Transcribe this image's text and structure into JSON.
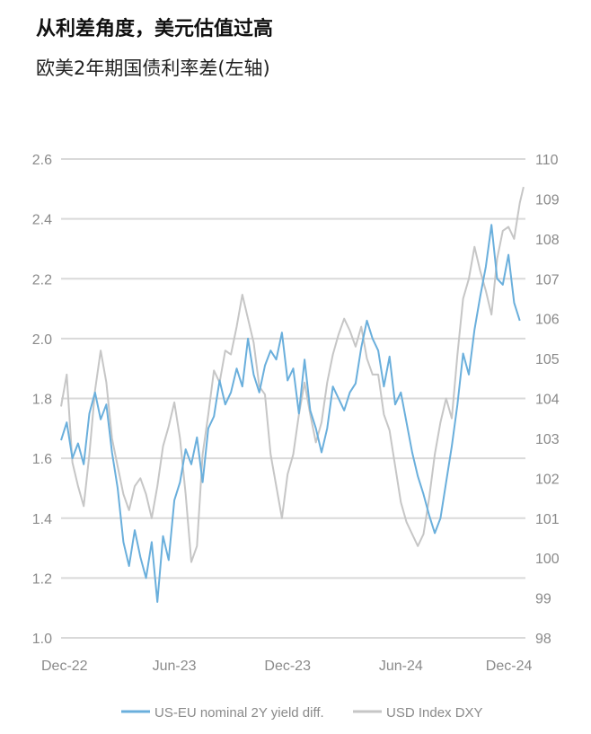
{
  "header": {
    "title": "从利差角度，美元估值过高",
    "subtitle": "欧美2年期国债利率差(左轴)"
  },
  "chart_data": {
    "type": "line",
    "x_ticks": [
      "Dec-22",
      "Jun-23",
      "Dec-23",
      "Jun-24",
      "Dec-24"
    ],
    "x_tick_months": [
      0,
      6,
      12,
      18,
      24
    ],
    "xlim_months": [
      0,
      24.6
    ],
    "y_left": {
      "ticks": [
        "1.0",
        "1.2",
        "1.4",
        "1.6",
        "1.8",
        "2.0",
        "2.2",
        "2.4",
        "2.6"
      ],
      "lim": [
        1.0,
        2.6
      ]
    },
    "y_right": {
      "ticks": [
        "98",
        "99",
        "100",
        "101",
        "102",
        "103",
        "104",
        "105",
        "106",
        "107",
        "108",
        "109",
        "110"
      ],
      "lim": [
        98,
        110
      ]
    },
    "grid": true,
    "legend_position": "bottom",
    "colors": {
      "spread": "#6aafdc",
      "dxy": "#c6c6c6",
      "grid": "#d9d9d9",
      "ticks": "#8a8a8a"
    },
    "series": [
      {
        "name": "US-EU nominal 2Y yield diff.",
        "axis": "left",
        "x_months": [
          0,
          0.3,
          0.6,
          0.9,
          1.2,
          1.5,
          1.8,
          2.1,
          2.4,
          2.7,
          3.0,
          3.3,
          3.6,
          3.9,
          4.2,
          4.5,
          4.8,
          5.1,
          5.4,
          5.7,
          6.0,
          6.3,
          6.6,
          6.9,
          7.2,
          7.5,
          7.8,
          8.1,
          8.4,
          8.7,
          9.0,
          9.3,
          9.6,
          9.9,
          10.2,
          10.5,
          10.8,
          11.1,
          11.4,
          11.7,
          12.0,
          12.3,
          12.6,
          12.9,
          13.2,
          13.5,
          13.8,
          14.1,
          14.4,
          14.7,
          15.0,
          15.3,
          15.6,
          15.9,
          16.2,
          16.5,
          16.8,
          17.1,
          17.4,
          17.7,
          18.0,
          18.3,
          18.6,
          18.9,
          19.2,
          19.5,
          19.8,
          20.1,
          20.4,
          20.7,
          21.0,
          21.3,
          21.6,
          21.9,
          22.2,
          22.5,
          22.8,
          23.1,
          23.4,
          23.7,
          24.0,
          24.3
        ],
        "values": [
          1.66,
          1.72,
          1.6,
          1.65,
          1.58,
          1.75,
          1.82,
          1.73,
          1.78,
          1.62,
          1.5,
          1.32,
          1.24,
          1.36,
          1.27,
          1.2,
          1.32,
          1.12,
          1.34,
          1.26,
          1.46,
          1.52,
          1.63,
          1.58,
          1.67,
          1.52,
          1.7,
          1.74,
          1.86,
          1.78,
          1.82,
          1.9,
          1.84,
          2.0,
          1.88,
          1.82,
          1.91,
          1.96,
          1.93,
          2.02,
          1.86,
          1.9,
          1.75,
          1.93,
          1.76,
          1.7,
          1.62,
          1.7,
          1.84,
          1.8,
          1.76,
          1.82,
          1.85,
          1.97,
          2.06,
          2.0,
          1.96,
          1.84,
          1.94,
          1.78,
          1.82,
          1.72,
          1.62,
          1.54,
          1.48,
          1.41,
          1.35,
          1.4,
          1.52,
          1.64,
          1.78,
          1.95,
          1.88,
          2.03,
          2.14,
          2.24,
          2.38,
          2.2,
          2.18,
          2.28,
          2.12,
          2.06
        ]
      },
      {
        "name": "USD Index DXY",
        "axis": "right",
        "x_months": [
          0,
          0.3,
          0.6,
          0.9,
          1.2,
          1.5,
          1.8,
          2.1,
          2.4,
          2.7,
          3.0,
          3.3,
          3.6,
          3.9,
          4.2,
          4.5,
          4.8,
          5.1,
          5.4,
          5.7,
          6.0,
          6.3,
          6.6,
          6.9,
          7.2,
          7.5,
          7.8,
          8.1,
          8.4,
          8.7,
          9.0,
          9.3,
          9.6,
          9.9,
          10.2,
          10.5,
          10.8,
          11.1,
          11.4,
          11.7,
          12.0,
          12.3,
          12.6,
          12.9,
          13.2,
          13.5,
          13.8,
          14.1,
          14.4,
          14.7,
          15.0,
          15.3,
          15.6,
          15.9,
          16.2,
          16.5,
          16.8,
          17.1,
          17.4,
          17.7,
          18.0,
          18.3,
          18.6,
          18.9,
          19.2,
          19.5,
          19.8,
          20.1,
          20.4,
          20.7,
          21.0,
          21.3,
          21.6,
          21.9,
          22.2,
          22.5,
          22.8,
          23.1,
          23.4,
          23.7,
          24.0,
          24.3,
          24.5
        ],
        "values": [
          103.8,
          104.6,
          102.4,
          101.8,
          101.3,
          102.6,
          104.2,
          105.2,
          104.4,
          103.0,
          102.3,
          101.6,
          101.2,
          101.8,
          102.0,
          101.6,
          101.0,
          101.8,
          102.8,
          103.3,
          103.9,
          103.0,
          101.6,
          99.9,
          100.3,
          102.6,
          103.6,
          104.7,
          104.4,
          105.2,
          105.1,
          105.8,
          106.6,
          106.0,
          105.4,
          104.3,
          104.1,
          102.6,
          101.8,
          101.0,
          102.1,
          102.6,
          103.6,
          104.4,
          103.6,
          102.9,
          103.4,
          104.4,
          105.1,
          105.6,
          106.0,
          105.7,
          105.3,
          105.8,
          105.0,
          104.6,
          104.6,
          103.6,
          103.2,
          102.3,
          101.4,
          100.9,
          100.6,
          100.3,
          100.6,
          101.5,
          102.6,
          103.4,
          104.0,
          103.5,
          105.1,
          106.5,
          107.0,
          107.8,
          107.2,
          106.7,
          106.1,
          107.5,
          108.2,
          108.3,
          108.0,
          108.9,
          109.3
        ]
      }
    ]
  }
}
